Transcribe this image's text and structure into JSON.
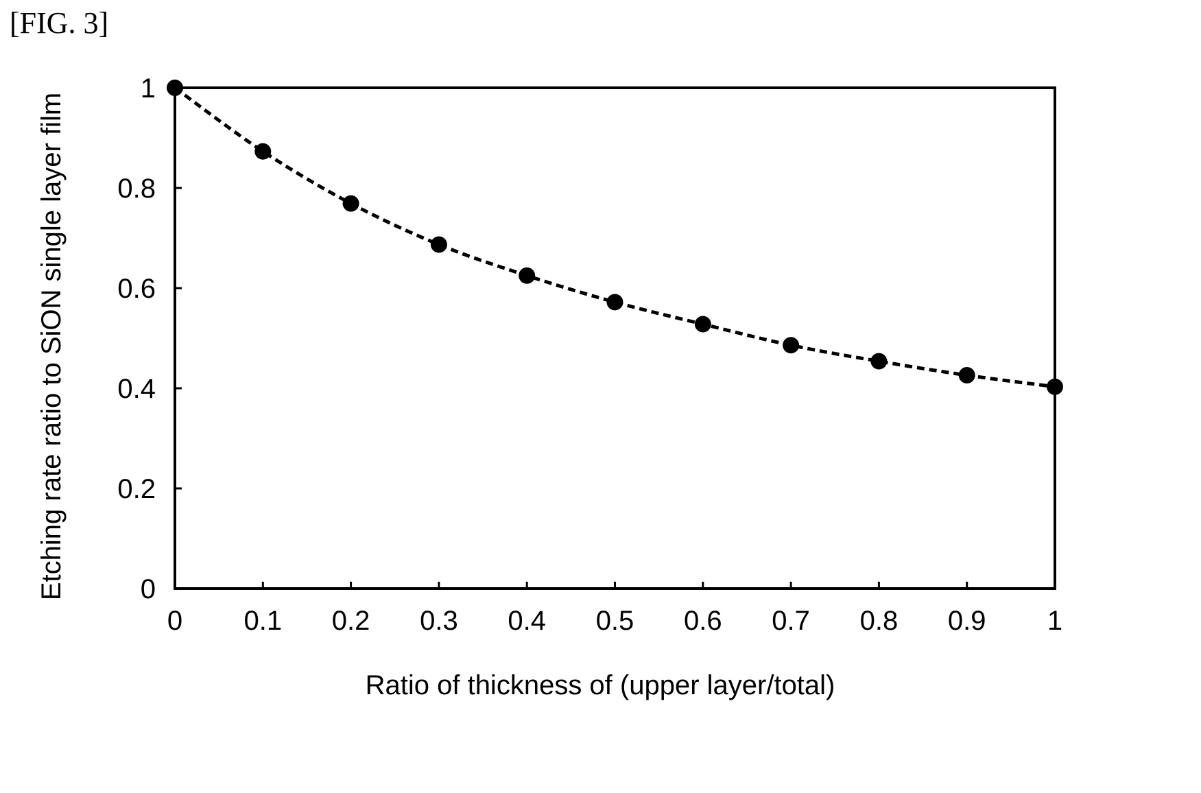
{
  "figure_label": "[FIG. 3]",
  "chart_data": {
    "type": "scatter",
    "xlabel": "Ratio of thickness of (upper layer/total)",
    "ylabel": "Etching rate ratio to SiON single layer film",
    "xlim": [
      0,
      1
    ],
    "ylim": [
      0,
      1
    ],
    "x_ticks": [
      "0",
      "0.1",
      "0.2",
      "0.3",
      "0.4",
      "0.5",
      "0.6",
      "0.7",
      "0.8",
      "0.9",
      "1"
    ],
    "y_ticks": [
      "0",
      "0.2",
      "0.4",
      "0.6",
      "0.8",
      "1"
    ],
    "grid": false,
    "trendline": "dashed",
    "marker": "filled-circle",
    "series": [
      {
        "x": [
          0,
          0.1,
          0.2,
          0.3,
          0.4,
          0.5,
          0.6,
          0.7,
          0.8,
          0.9,
          1
        ],
        "y": [
          1.0,
          0.873,
          0.769,
          0.687,
          0.625,
          0.572,
          0.528,
          0.486,
          0.454,
          0.426,
          0.403
        ]
      }
    ],
    "colors": {
      "marker": "#000000",
      "line": "#000000",
      "axes": "#000000"
    }
  }
}
